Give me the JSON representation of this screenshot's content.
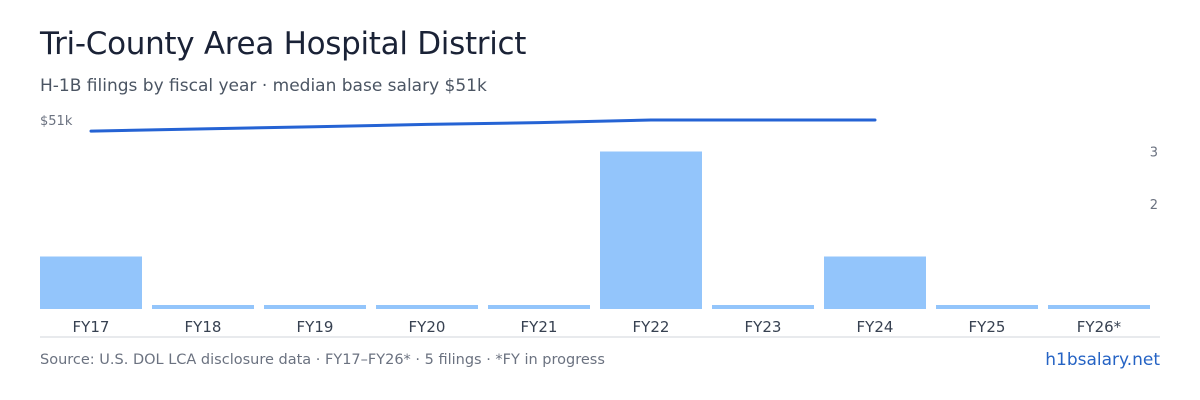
{
  "header": {
    "title": "Tri-County Area Hospital District",
    "subtitle": "H-1B filings by fiscal year · median base salary $51k"
  },
  "footer": {
    "source": "Source: U.S. DOL LCA disclosure data · FY17–FY26* · 5 filings · *FY in progress",
    "brand": "h1bsalary.net"
  },
  "chart_data": {
    "type": "bar",
    "categories": [
      "FY17",
      "FY18",
      "FY19",
      "FY20",
      "FY21",
      "FY22",
      "FY23",
      "FY24",
      "FY25",
      "FY26*"
    ],
    "series": [
      {
        "type": "bar",
        "axis": "right",
        "values": [
          1,
          0,
          0,
          0,
          0,
          3,
          0,
          1,
          0,
          0
        ]
      },
      {
        "type": "line",
        "axis": "left",
        "values": [
          48,
          48.6,
          49.2,
          49.8,
          50.3,
          51,
          51,
          51,
          null,
          null
        ]
      }
    ],
    "left_axis": {
      "top_label": "$51k",
      "ylim": [
        0,
        51
      ]
    },
    "right_axis": {
      "tick_labels": [
        "3",
        "2"
      ],
      "ticks": [
        3,
        2
      ],
      "ylim": [
        0,
        3.6
      ]
    },
    "colors": {
      "bar": "#93c5fb",
      "line": "#2563d4",
      "baseline": "#d1d5db"
    },
    "grid": false,
    "legend": "none"
  }
}
